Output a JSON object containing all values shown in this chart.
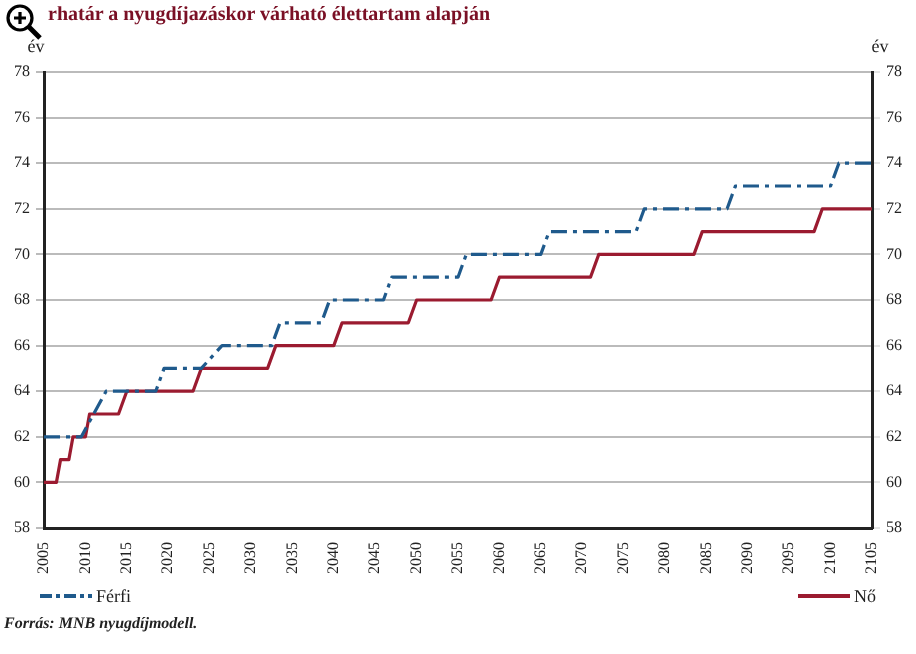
{
  "chart_data": {
    "type": "line",
    "title": "rhatár a nyugdíjazáskor várható élettartam alapján",
    "ylabel": "év",
    "y2label": "év",
    "xlim": [
      2005,
      2105
    ],
    "xticks": [
      2005,
      2010,
      2015,
      2020,
      2025,
      2030,
      2035,
      2040,
      2045,
      2050,
      2055,
      2060,
      2065,
      2070,
      2075,
      2080,
      2085,
      2090,
      2095,
      2100,
      2105
    ],
    "ylim": [
      58,
      78
    ],
    "yticks": [
      58,
      60,
      62,
      64,
      66,
      68,
      70,
      72,
      74,
      76,
      78
    ],
    "y2lim": [
      58,
      78
    ],
    "y2ticks": [
      58,
      60,
      62,
      64,
      66,
      68,
      70,
      72,
      74,
      76,
      78
    ],
    "grid": "y",
    "legend": "bottom",
    "marker": "none",
    "series": [
      {
        "name": "Férfi",
        "color": "#1f5a8c",
        "line_style": "dashed",
        "x": [
          2005,
          2009.5,
          2011,
          2012.5,
          2018.5,
          2019.5,
          2024,
          2026.5,
          2032.5,
          2033.5,
          2038.5,
          2039.5,
          2046,
          2047,
          2055,
          2056,
          2065,
          2066,
          2076.5,
          2077.5,
          2087.5,
          2088.5,
          2100,
          2101,
          2105
        ],
        "values": [
          62,
          62,
          63,
          64,
          64,
          65,
          65,
          66,
          66,
          67,
          67,
          68,
          68,
          69,
          69,
          70,
          70,
          71,
          71,
          72,
          72,
          73,
          73,
          74,
          74
        ]
      },
      {
        "name": "Nő",
        "color": "#9b1b30",
        "line_style": "solid",
        "x": [
          2005,
          2006.5,
          2007,
          2008,
          2008.5,
          2010,
          2010.5,
          2014,
          2015,
          2023,
          2024,
          2032,
          2033,
          2040,
          2041,
          2049,
          2050,
          2059,
          2060,
          2071,
          2072,
          2083.5,
          2084.5,
          2098,
          2099,
          2105
        ],
        "values": [
          60,
          60,
          61,
          61,
          62,
          62,
          63,
          63,
          64,
          64,
          65,
          65,
          66,
          66,
          67,
          67,
          68,
          68,
          69,
          69,
          70,
          70,
          71,
          71,
          72,
          72
        ]
      }
    ],
    "annotations": [
      "Forrás: MNB nyugdíjmodell."
    ]
  }
}
